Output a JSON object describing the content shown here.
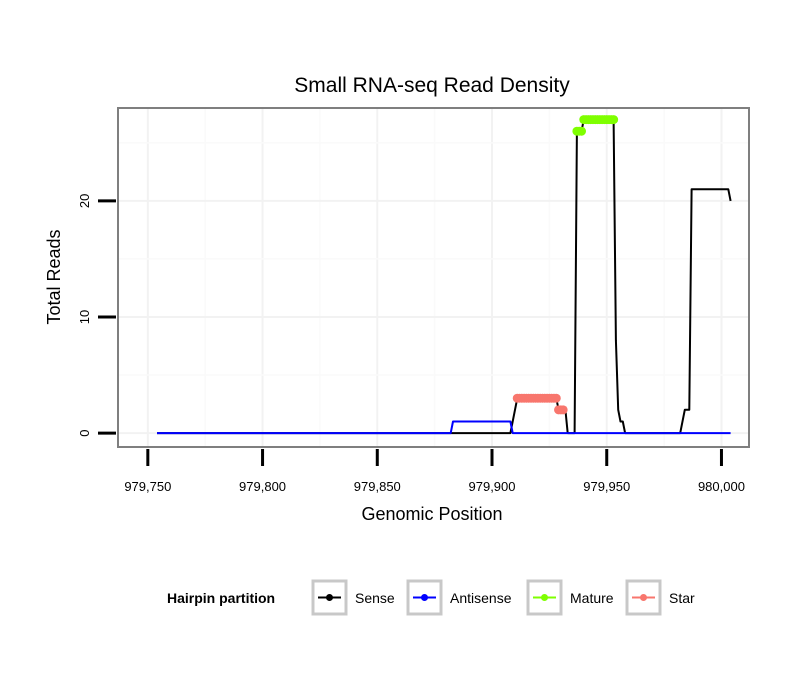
{
  "chart_data": {
    "type": "line",
    "title": "Small RNA-seq Read Density",
    "xlabel": "Genomic Position",
    "ylabel": "Total Reads",
    "xlim": [
      979737,
      980012
    ],
    "ylim": [
      -1.2,
      28
    ],
    "xticks": [
      979750,
      979800,
      979850,
      979900,
      979950,
      980000
    ],
    "xtick_labels": [
      "979,750",
      "979,800",
      "979,850",
      "979,900",
      "979,950",
      "980,000"
    ],
    "yticks": [
      0,
      10,
      20
    ],
    "ytick_labels": [
      "0",
      "10",
      "20"
    ],
    "grid": true,
    "legend_position": "bottom",
    "legend_title": "Hairpin partition",
    "series": [
      {
        "name": "Sense",
        "color": "#000000",
        "marker": false,
        "points": [
          [
            979754,
            0
          ],
          [
            979908,
            0
          ],
          [
            979911,
            3
          ],
          [
            979928,
            3
          ],
          [
            979929,
            2
          ],
          [
            979932,
            2
          ],
          [
            979933,
            0
          ],
          [
            979936,
            0
          ],
          [
            979937,
            26
          ],
          [
            979939,
            26
          ],
          [
            979940,
            27
          ],
          [
            979953,
            27
          ],
          [
            979954,
            8
          ],
          [
            979955,
            2
          ],
          [
            979956,
            1
          ],
          [
            979957,
            1
          ],
          [
            979958,
            0
          ],
          [
            979982,
            0
          ],
          [
            979984,
            2
          ],
          [
            979986,
            2
          ],
          [
            979987,
            21
          ],
          [
            980003,
            21
          ],
          [
            980004,
            20
          ]
        ]
      },
      {
        "name": "Antisense",
        "color": "#0000ff",
        "marker": false,
        "points": [
          [
            979754,
            0
          ],
          [
            979882,
            0
          ],
          [
            979883,
            1
          ],
          [
            979908,
            1
          ],
          [
            979909,
            0
          ],
          [
            980004,
            0
          ]
        ]
      },
      {
        "name": "Mature",
        "color": "#7fff00",
        "marker": true,
        "points": [
          [
            979937,
            26
          ],
          [
            979938,
            26
          ],
          [
            979939,
            26
          ],
          [
            979940,
            27
          ],
          [
            979941,
            27
          ],
          [
            979942,
            27
          ],
          [
            979943,
            27
          ],
          [
            979944,
            27
          ],
          [
            979945,
            27
          ],
          [
            979946,
            27
          ],
          [
            979947,
            27
          ],
          [
            979948,
            27
          ],
          [
            979949,
            27
          ],
          [
            979950,
            27
          ],
          [
            979951,
            27
          ],
          [
            979952,
            27
          ],
          [
            979953,
            27
          ]
        ]
      },
      {
        "name": "Star",
        "color": "#f8766d",
        "marker": true,
        "points": [
          [
            979911,
            3
          ],
          [
            979912,
            3
          ],
          [
            979913,
            3
          ],
          [
            979914,
            3
          ],
          [
            979915,
            3
          ],
          [
            979916,
            3
          ],
          [
            979917,
            3
          ],
          [
            979918,
            3
          ],
          [
            979919,
            3
          ],
          [
            979920,
            3
          ],
          [
            979921,
            3
          ],
          [
            979922,
            3
          ],
          [
            979923,
            3
          ],
          [
            979924,
            3
          ],
          [
            979925,
            3
          ],
          [
            979926,
            3
          ],
          [
            979927,
            3
          ],
          [
            979928,
            3
          ],
          [
            979929,
            2
          ],
          [
            979930,
            2
          ],
          [
            979931,
            2
          ]
        ]
      }
    ]
  }
}
